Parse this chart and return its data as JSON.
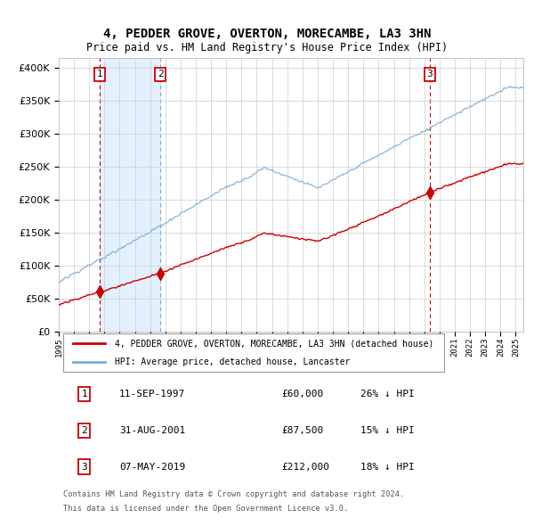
{
  "title": "4, PEDDER GROVE, OVERTON, MORECAMBE, LA3 3HN",
  "subtitle": "Price paid vs. HM Land Registry's House Price Index (HPI)",
  "legend_property": "4, PEDDER GROVE, OVERTON, MORECAMBE, LA3 3HN (detached house)",
  "legend_hpi": "HPI: Average price, detached house, Lancaster",
  "sales": [
    {
      "num": 1,
      "date": "11-SEP-1997",
      "date_x": 1997.7,
      "price": 60000,
      "hpi_pct": "26% ↓ HPI"
    },
    {
      "num": 2,
      "date": "31-AUG-2001",
      "date_x": 2001.67,
      "price": 87500,
      "hpi_pct": "15% ↓ HPI"
    },
    {
      "num": 3,
      "date": "07-MAY-2019",
      "date_x": 2019.36,
      "price": 212000,
      "hpi_pct": "18% ↓ HPI"
    }
  ],
  "footnote1": "Contains HM Land Registry data © Crown copyright and database right 2024.",
  "footnote2": "This data is licensed under the Open Government Licence v3.0.",
  "ylim": [
    0,
    400000
  ],
  "xlim": [
    1995.0,
    2025.5
  ],
  "property_color": "#cc0000",
  "hpi_color": "#7bafd4",
  "bg_highlight_color": "#ddeeff",
  "grid_color": "#cccccc"
}
